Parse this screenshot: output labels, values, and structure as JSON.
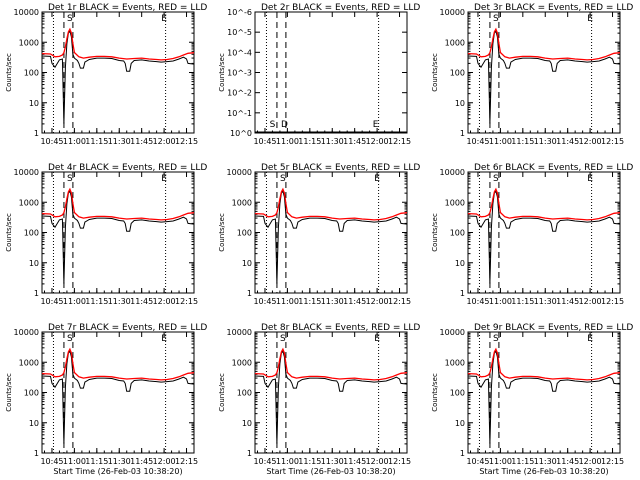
{
  "chart_data": [
    {
      "type": "line",
      "title": "Det 1r BLACK = Events, RED = LLD",
      "ylabel": "Counts/sec",
      "xlabel": "",
      "yscale": "log",
      "ylim": [
        1,
        10000
      ],
      "y_ticks": [
        "1",
        "10",
        "100",
        "1000",
        "10000"
      ],
      "x_ticks": [
        "10:45",
        "11:00",
        "11:15",
        "11:30",
        "11:45",
        "12:00",
        "12:15"
      ],
      "annotations": [
        "S",
        "E"
      ],
      "series": [
        {
          "name": "Events",
          "color": "#000000"
        },
        {
          "name": "LLD",
          "color": "#ff0000"
        }
      ],
      "flat": false
    },
    {
      "type": "line",
      "title": "Det 2r BLACK = Events, RED = LLD",
      "ylabel": "Counts/sec",
      "xlabel": "",
      "yscale": "log",
      "ylim": [
        1,
        1e-06
      ],
      "y_ticks": [
        "10^0",
        "10^-1",
        "10^-2",
        "10^-3",
        "10^-4",
        "10^-5",
        "10^-6"
      ],
      "x_ticks": [
        "10:45",
        "11:00",
        "11:15",
        "11:30",
        "11:45",
        "12:00",
        "12:15"
      ],
      "annotations": [
        "S",
        "D",
        "E"
      ],
      "series": [
        {
          "name": "Events",
          "color": "#000000"
        },
        {
          "name": "LLD",
          "color": "#ff0000"
        }
      ],
      "flat": true
    },
    {
      "type": "line",
      "title": "Det 3r BLACK = Events, RED = LLD",
      "ylabel": "Counts/sec",
      "xlabel": "",
      "yscale": "log",
      "ylim": [
        1,
        10000
      ],
      "y_ticks": [
        "1",
        "10",
        "100",
        "1000",
        "10000"
      ],
      "x_ticks": [
        "10:45",
        "11:00",
        "11:15",
        "11:30",
        "11:45",
        "12:00",
        "12:15"
      ],
      "annotations": [
        "S",
        "E"
      ],
      "series": [
        {
          "name": "Events",
          "color": "#000000"
        },
        {
          "name": "LLD",
          "color": "#ff0000"
        }
      ],
      "flat": false
    },
    {
      "type": "line",
      "title": "Det 4r BLACK = Events, RED = LLD",
      "ylabel": "Counts/sec",
      "xlabel": "",
      "yscale": "log",
      "ylim": [
        1,
        10000
      ],
      "y_ticks": [
        "1",
        "10",
        "100",
        "1000",
        "10000"
      ],
      "x_ticks": [
        "10:45",
        "11:00",
        "11:15",
        "11:30",
        "11:45",
        "12:00",
        "12:15"
      ],
      "annotations": [
        "S",
        "E"
      ],
      "series": [
        {
          "name": "Events",
          "color": "#000000"
        },
        {
          "name": "LLD",
          "color": "#ff0000"
        }
      ],
      "flat": false
    },
    {
      "type": "line",
      "title": "Det 5r BLACK = Events, RED = LLD",
      "ylabel": "Counts/sec",
      "xlabel": "",
      "yscale": "log",
      "ylim": [
        1,
        10000
      ],
      "y_ticks": [
        "1",
        "10",
        "100",
        "1000",
        "10000"
      ],
      "x_ticks": [
        "10:45",
        "11:00",
        "11:15",
        "11:30",
        "11:45",
        "12:00",
        "12:15"
      ],
      "annotations": [
        "S",
        "E"
      ],
      "series": [
        {
          "name": "Events",
          "color": "#000000"
        },
        {
          "name": "LLD",
          "color": "#ff0000"
        }
      ],
      "flat": false
    },
    {
      "type": "line",
      "title": "Det 6r BLACK = Events, RED = LLD",
      "ylabel": "Counts/sec",
      "xlabel": "",
      "yscale": "log",
      "ylim": [
        1,
        10000
      ],
      "y_ticks": [
        "1",
        "10",
        "100",
        "1000",
        "10000"
      ],
      "x_ticks": [
        "10:45",
        "11:00",
        "11:15",
        "11:30",
        "11:45",
        "12:00",
        "12:15"
      ],
      "annotations": [
        "S",
        "E"
      ],
      "series": [
        {
          "name": "Events",
          "color": "#000000"
        },
        {
          "name": "LLD",
          "color": "#ff0000"
        }
      ],
      "flat": false
    },
    {
      "type": "line",
      "title": "Det 7r BLACK = Events, RED = LLD",
      "ylabel": "Counts/sec",
      "xlabel": "Start Time (26-Feb-03 10:38:20)",
      "yscale": "log",
      "ylim": [
        1,
        10000
      ],
      "y_ticks": [
        "1",
        "10",
        "100",
        "1000",
        "10000"
      ],
      "x_ticks": [
        "10:45",
        "11:00",
        "11:15",
        "11:30",
        "11:45",
        "12:00",
        "12:15"
      ],
      "annotations": [
        "S",
        "E"
      ],
      "series": [
        {
          "name": "Events",
          "color": "#000000"
        },
        {
          "name": "LLD",
          "color": "#ff0000"
        }
      ],
      "flat": false
    },
    {
      "type": "line",
      "title": "Det 8r BLACK = Events, RED = LLD",
      "ylabel": "Counts/sec",
      "xlabel": "Start Time (26-Feb-03 10:38:20)",
      "yscale": "log",
      "ylim": [
        1,
        10000
      ],
      "y_ticks": [
        "1",
        "10",
        "100",
        "1000",
        "10000"
      ],
      "x_ticks": [
        "10:45",
        "11:00",
        "11:15",
        "11:30",
        "11:45",
        "12:00",
        "12:15"
      ],
      "annotations": [
        "S",
        "E"
      ],
      "series": [
        {
          "name": "Events",
          "color": "#000000"
        },
        {
          "name": "LLD",
          "color": "#ff0000"
        }
      ],
      "flat": false
    },
    {
      "type": "line",
      "title": "Det 9r BLACK = Events, RED = LLD",
      "ylabel": "Counts/sec",
      "xlabel": "Start Time (26-Feb-03 10:38:20)",
      "yscale": "log",
      "ylim": [
        1,
        10000
      ],
      "y_ticks": [
        "1",
        "10",
        "100",
        "1000",
        "10000"
      ],
      "x_ticks": [
        "10:45",
        "11:00",
        "11:15",
        "11:30",
        "11:45",
        "12:00",
        "12:15"
      ],
      "annotations": [
        "S",
        "E"
      ],
      "series": [
        {
          "name": "Events",
          "color": "#000000"
        },
        {
          "name": "LLD",
          "color": "#ff0000"
        }
      ],
      "flat": false
    }
  ],
  "common": {
    "xlabel": "Start Time (26-Feb-03 10:38:20)",
    "x_tick_times_min": [
      45,
      60,
      75,
      90,
      105,
      120,
      135
    ],
    "x_range_min": [
      38.33,
      140
    ],
    "vlines_dotted_min": [
      46,
      121
    ],
    "vlines_dashed_min": [
      53,
      59
    ],
    "events_curve": [
      [
        38.3,
        350
      ],
      [
        44,
        340
      ],
      [
        45,
        200
      ],
      [
        47,
        150
      ],
      [
        50,
        260
      ],
      [
        52,
        280
      ],
      [
        53,
        2
      ],
      [
        54,
        150
      ],
      [
        55,
        900
      ],
      [
        56,
        2000
      ],
      [
        57,
        2300
      ],
      [
        58,
        1500
      ],
      [
        59,
        400
      ],
      [
        60,
        300
      ],
      [
        62,
        250
      ],
      [
        63,
        200
      ],
      [
        64,
        140
      ],
      [
        66,
        140
      ],
      [
        67,
        220
      ],
      [
        70,
        270
      ],
      [
        75,
        300
      ],
      [
        80,
        300
      ],
      [
        85,
        290
      ],
      [
        90,
        250
      ],
      [
        93,
        240
      ],
      [
        94,
        200
      ],
      [
        95,
        110
      ],
      [
        97,
        110
      ],
      [
        98,
        200
      ],
      [
        100,
        250
      ],
      [
        105,
        260
      ],
      [
        110,
        240
      ],
      [
        115,
        230
      ],
      [
        118,
        220
      ],
      [
        122,
        230
      ],
      [
        126,
        240
      ],
      [
        130,
        280
      ],
      [
        133,
        320
      ],
      [
        135,
        280
      ],
      [
        136,
        200
      ],
      [
        140,
        190
      ]
    ],
    "lld_curve": [
      [
        38.3,
        420
      ],
      [
        44,
        410
      ],
      [
        47,
        330
      ],
      [
        50,
        340
      ],
      [
        52,
        380
      ],
      [
        53,
        450
      ],
      [
        54,
        700
      ],
      [
        55,
        1300
      ],
      [
        56,
        2200
      ],
      [
        57,
        2700
      ],
      [
        58,
        2000
      ],
      [
        59,
        900
      ],
      [
        60,
        460
      ],
      [
        63,
        330
      ],
      [
        66,
        300
      ],
      [
        70,
        320
      ],
      [
        75,
        340
      ],
      [
        80,
        340
      ],
      [
        85,
        330
      ],
      [
        90,
        300
      ],
      [
        95,
        280
      ],
      [
        100,
        290
      ],
      [
        105,
        300
      ],
      [
        110,
        280
      ],
      [
        115,
        270
      ],
      [
        118,
        260
      ],
      [
        122,
        270
      ],
      [
        126,
        290
      ],
      [
        130,
        330
      ],
      [
        133,
        380
      ],
      [
        136,
        430
      ],
      [
        140,
        450
      ]
    ],
    "flat_values": {
      "events": 1,
      "lld": 1
    }
  }
}
